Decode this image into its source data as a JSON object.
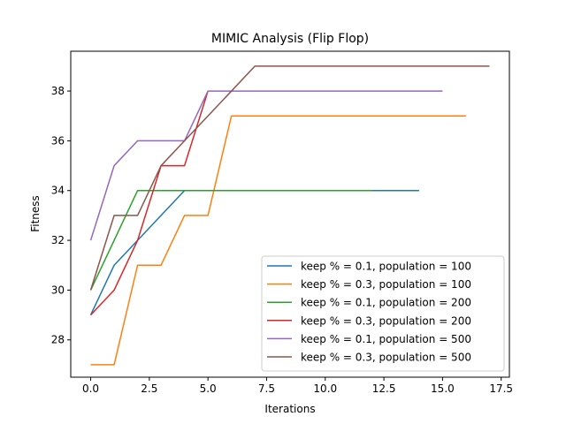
{
  "chart_data": {
    "type": "line",
    "title": "MIMIC Analysis (Flip Flop)",
    "xlabel": "Iterations",
    "ylabel": "Fitness",
    "xlim": [
      -0.85,
      17.85
    ],
    "ylim": [
      26.5,
      39.6
    ],
    "xticks": [
      0.0,
      2.5,
      5.0,
      7.5,
      10.0,
      12.5,
      15.0,
      17.5
    ],
    "xtick_labels": [
      "0.0",
      "2.5",
      "5.0",
      "7.5",
      "10.0",
      "12.5",
      "15.0",
      "17.5"
    ],
    "yticks": [
      28,
      30,
      32,
      34,
      36,
      38
    ],
    "ytick_labels": [
      "28",
      "30",
      "32",
      "34",
      "36",
      "38"
    ],
    "grid": false,
    "legend_position": "lower-right",
    "series": [
      {
        "name": "keep % = 0.1, population = 100",
        "color": "#1f77b4",
        "x": [
          0,
          1,
          2,
          3,
          4,
          5,
          6,
          7,
          8,
          9,
          10,
          11,
          12,
          13,
          14
        ],
        "y": [
          29,
          31,
          32,
          33,
          34,
          34,
          34,
          34,
          34,
          34,
          34,
          34,
          34,
          34,
          34
        ]
      },
      {
        "name": "keep % = 0.3, population = 100",
        "color": "#ff7f0e",
        "x": [
          0,
          1,
          2,
          3,
          4,
          5,
          6,
          7,
          8,
          9,
          10,
          11,
          12,
          13,
          14,
          15,
          16
        ],
        "y": [
          27,
          27,
          31,
          31,
          33,
          33,
          37,
          37,
          37,
          37,
          37,
          37,
          37,
          37,
          37,
          37,
          37
        ]
      },
      {
        "name": "keep % = 0.1, population = 200",
        "color": "#2ca02c",
        "x": [
          0,
          1,
          2,
          3,
          4,
          5,
          6,
          7,
          8,
          9,
          10,
          11,
          12
        ],
        "y": [
          30,
          32,
          34,
          34,
          34,
          34,
          34,
          34,
          34,
          34,
          34,
          34,
          34
        ]
      },
      {
        "name": "keep % = 0.3, population = 200",
        "color": "#d62728",
        "x": [
          0,
          1,
          2,
          3,
          4,
          5
        ],
        "y": [
          29,
          30,
          32,
          35,
          35,
          38
        ]
      },
      {
        "name": "keep % = 0.1, population = 500",
        "color": "#9467bd",
        "x": [
          0,
          1,
          2,
          3,
          4,
          5,
          6,
          7,
          8,
          9,
          10,
          11,
          12,
          13,
          14,
          15
        ],
        "y": [
          32,
          35,
          36,
          36,
          36,
          38,
          38,
          38,
          38,
          38,
          38,
          38,
          38,
          38,
          38,
          38
        ]
      },
      {
        "name": "keep % = 0.3, population = 500",
        "color": "#8c564b",
        "x": [
          0,
          1,
          2,
          3,
          4,
          5,
          6,
          7,
          8,
          9,
          10,
          11,
          12,
          13,
          14,
          15,
          16,
          17
        ],
        "y": [
          30,
          33,
          33,
          35,
          36,
          37,
          38,
          39,
          39,
          39,
          39,
          39,
          39,
          39,
          39,
          39,
          39,
          39
        ]
      }
    ]
  }
}
